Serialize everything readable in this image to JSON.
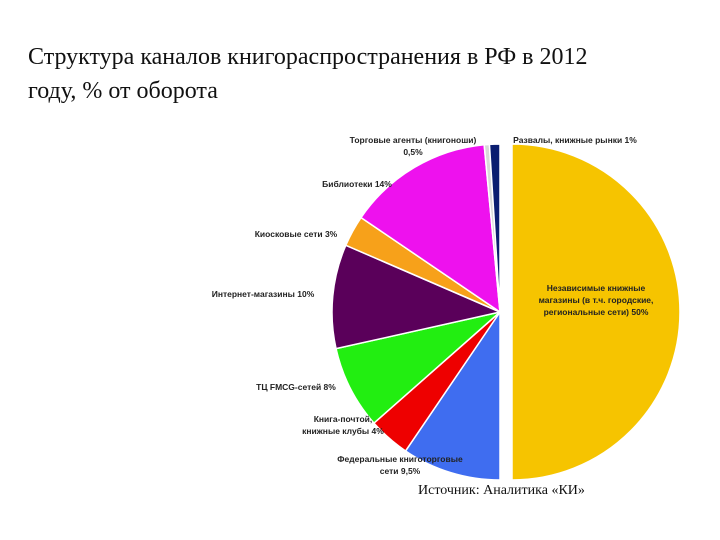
{
  "title": "Структура каналов книгораспространения в РФ в 2012 году, % от оборота",
  "source": "Источник: Аналитика «КИ»",
  "chart_data": {
    "type": "pie",
    "title": "Структура каналов книгораспространения в РФ в 2012 году, % от оборота",
    "unit": "%",
    "slices": [
      {
        "label_lines": [
          "Независимые книжные",
          "магазины (в т.ч. городские,",
          "региональные сети) 50%"
        ],
        "value": 50,
        "color": "#f6c400",
        "exploded": true
      },
      {
        "label_lines": [
          "Федеральные книготорговые",
          "сети 9,5%"
        ],
        "value": 9.5,
        "color": "#3f6df0"
      },
      {
        "label_lines": [
          "Книга-почтой,",
          "книжные клубы 4%"
        ],
        "value": 4,
        "color": "#ee0000"
      },
      {
        "label_lines": [
          "ТЦ FMCG-сетей 8%"
        ],
        "value": 8,
        "color": "#22ee11"
      },
      {
        "label_lines": [
          "Интернет-магазины 10%"
        ],
        "value": 10,
        "color": "#5a005a"
      },
      {
        "label_lines": [
          "Киосковые сети 3%"
        ],
        "value": 3,
        "color": "#f7a11a"
      },
      {
        "label_lines": [
          "Библиотеки 14%"
        ],
        "value": 14,
        "color": "#ee11ee"
      },
      {
        "label_lines": [
          "Торговые агенты (книгоноши)",
          "0,5%"
        ],
        "value": 0.5,
        "color": "#d9d9d9"
      },
      {
        "label_lines": [
          "Развалы, книжные рынки 1%"
        ],
        "value": 1,
        "color": "#0a1d70"
      }
    ]
  }
}
